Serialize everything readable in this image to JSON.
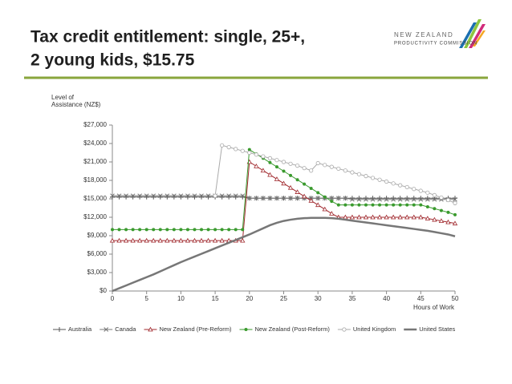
{
  "slide": {
    "title": [
      "Tax credit entitlement: single, 25+,",
      "2 young kids, $15.75"
    ],
    "logo": [
      "NEW ZEALAND",
      "PRODUCTIVITY COMMISSION"
    ]
  },
  "chart_data": {
    "type": "line",
    "y_label": [
      "Level of",
      "Assistance (NZ$)"
    ],
    "x_label": "Hours of Work",
    "x": [
      0,
      1,
      2,
      3,
      4,
      5,
      6,
      7,
      8,
      9,
      10,
      11,
      12,
      13,
      14,
      15,
      16,
      17,
      18,
      19,
      20,
      21,
      22,
      23,
      24,
      25,
      26,
      27,
      28,
      29,
      30,
      31,
      32,
      33,
      34,
      35,
      36,
      37,
      38,
      39,
      40,
      41,
      42,
      43,
      44,
      45,
      46,
      47,
      48,
      49,
      50
    ],
    "xlim": [
      0,
      50
    ],
    "xticks": [
      0,
      5,
      10,
      15,
      20,
      25,
      30,
      35,
      40,
      45,
      50
    ],
    "ylim": [
      0,
      27000
    ],
    "yticks": [
      {
        "value": 0,
        "label": "$0"
      },
      {
        "value": 3000,
        "label": "$3,000"
      },
      {
        "value": 6000,
        "label": "$6,000"
      },
      {
        "value": 9000,
        "label": "$9,000"
      },
      {
        "value": 12000,
        "label": "$12,000"
      },
      {
        "value": 15000,
        "label": "$15,000"
      },
      {
        "value": 18000,
        "label": "$18,000"
      },
      {
        "value": 21000,
        "label": "$21,000"
      },
      {
        "value": 24000,
        "label": "$24,000"
      },
      {
        "value": 27000,
        "label": "$27,000"
      }
    ],
    "legend": "bottom",
    "series": [
      {
        "name": "Australia",
        "color": "#555555",
        "marker": "plus",
        "values": [
          15300,
          15300,
          15300,
          15300,
          15300,
          15300,
          15300,
          15300,
          15300,
          15300,
          15300,
          15300,
          15300,
          15300,
          15300,
          15300,
          15300,
          15300,
          15300,
          15300,
          15100,
          15100,
          15100,
          15100,
          15100,
          15100,
          15100,
          15100,
          15100,
          15100,
          15100,
          15100,
          15100,
          15100,
          15100,
          15100,
          15100,
          15100,
          15100,
          15100,
          15100,
          15100,
          15100,
          15100,
          15100,
          15100,
          15100,
          15100,
          15100,
          15100,
          15100
        ]
      },
      {
        "name": "Canada",
        "color": "#777777",
        "marker": "x",
        "values": [
          15500,
          15500,
          15500,
          15500,
          15500,
          15500,
          15500,
          15500,
          15500,
          15500,
          15500,
          15500,
          15500,
          15500,
          15500,
          15500,
          15500,
          15500,
          15500,
          15500,
          15100,
          15100,
          15100,
          15100,
          15100,
          15100,
          15100,
          15100,
          15100,
          15100,
          15100,
          15100,
          15100,
          15100,
          15100,
          14900,
          14900,
          14900,
          14900,
          14900,
          14900,
          14900,
          14900,
          14900,
          14900,
          14900,
          14900,
          14900,
          14900,
          14900,
          14900
        ]
      },
      {
        "name": "New Zealand (Pre-Reform)",
        "color": "#a0282d",
        "marker": "triangle",
        "values": [
          8200,
          8200,
          8200,
          8200,
          8200,
          8200,
          8200,
          8200,
          8200,
          8200,
          8200,
          8200,
          8200,
          8200,
          8200,
          8200,
          8200,
          8200,
          8200,
          8200,
          21000,
          20300,
          19600,
          18900,
          18200,
          17500,
          16800,
          16100,
          15400,
          14700,
          14000,
          13300,
          12600,
          12000,
          12000,
          12000,
          12000,
          12000,
          12000,
          12000,
          12000,
          12000,
          12000,
          12000,
          12000,
          12000,
          11800,
          11600,
          11400,
          11200,
          11000
        ]
      },
      {
        "name": "New Zealand (Post-Reform)",
        "color": "#3a9a2e",
        "marker": "circle",
        "values": [
          10000,
          10000,
          10000,
          10000,
          10000,
          10000,
          10000,
          10000,
          10000,
          10000,
          10000,
          10000,
          10000,
          10000,
          10000,
          10000,
          10000,
          10000,
          10000,
          10000,
          23000,
          22300,
          21600,
          20900,
          20200,
          19500,
          18800,
          18100,
          17400,
          16700,
          16000,
          15300,
          14600,
          14000,
          14000,
          14000,
          14000,
          14000,
          14000,
          14000,
          14000,
          14000,
          14000,
          14000,
          14000,
          14000,
          13700,
          13400,
          13100,
          12800,
          12400
        ]
      },
      {
        "name": "United Kingdom",
        "color": "#aaaaaa",
        "marker": "circle-open",
        "values": [
          null,
          null,
          null,
          null,
          null,
          null,
          null,
          null,
          null,
          null,
          null,
          null,
          null,
          null,
          null,
          15500,
          23700,
          23400,
          23100,
          22800,
          22500,
          22200,
          21900,
          21600,
          21300,
          21000,
          20700,
          20400,
          20000,
          19600,
          20800,
          20500,
          20200,
          19900,
          19600,
          19300,
          19000,
          18700,
          18400,
          18100,
          17800,
          17500,
          17200,
          16900,
          16600,
          16300,
          16000,
          15600,
          15200,
          14800,
          14300
        ]
      },
      {
        "name": "United States",
        "color": "#777777",
        "marker": "none",
        "values": [
          0,
          450,
          900,
          1350,
          1800,
          2250,
          2700,
          3200,
          3700,
          4200,
          4700,
          5150,
          5600,
          6050,
          6500,
          6950,
          7400,
          7850,
          8300,
          8750,
          9200,
          9700,
          10200,
          10700,
          11100,
          11400,
          11600,
          11750,
          11850,
          11900,
          11900,
          11900,
          11850,
          11750,
          11600,
          11450,
          11300,
          11150,
          11000,
          10850,
          10700,
          10550,
          10400,
          10250,
          10100,
          9950,
          9800,
          9600,
          9400,
          9200,
          8900
        ]
      }
    ]
  }
}
